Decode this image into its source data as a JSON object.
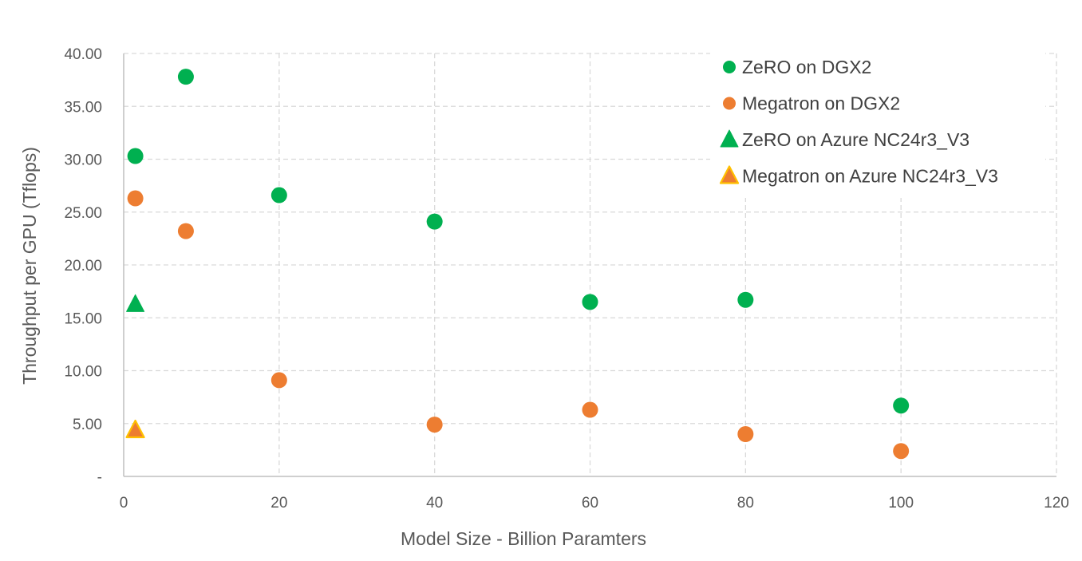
{
  "chart_data": {
    "type": "scatter",
    "title": "",
    "xlabel": "Model Size - Billion Paramters",
    "ylabel": "Throughput per GPU (Tflops)",
    "xlim": [
      0,
      120
    ],
    "ylim": [
      0,
      40
    ],
    "x_ticks": [
      "0",
      "20",
      "40",
      "60",
      "80",
      "100",
      "120"
    ],
    "y_ticks": [
      "-",
      "5.00",
      "10.00",
      "15.00",
      "20.00",
      "25.00",
      "30.00",
      "35.00",
      "40.00"
    ],
    "grid": true,
    "legend_position": "top-right",
    "series": [
      {
        "name": "ZeRO on DGX2",
        "marker": "circle",
        "color": "#00b050",
        "points": [
          [
            1.5,
            30.3
          ],
          [
            8,
            37.8
          ],
          [
            20,
            26.6
          ],
          [
            40,
            24.1
          ],
          [
            60,
            16.5
          ],
          [
            80,
            16.7
          ],
          [
            100,
            6.7
          ]
        ]
      },
      {
        "name": "Megatron on DGX2",
        "marker": "circle",
        "color": "#ed7d31",
        "points": [
          [
            1.5,
            26.3
          ],
          [
            8,
            23.2
          ],
          [
            20,
            9.1
          ],
          [
            40,
            4.9
          ],
          [
            60,
            6.3
          ],
          [
            80,
            4.0
          ],
          [
            100,
            2.4
          ]
        ]
      },
      {
        "name": "ZeRO on Azure NC24r3_V3",
        "marker": "triangle",
        "color": "#00b050",
        "points": [
          [
            1.5,
            16.2
          ]
        ]
      },
      {
        "name": "Megatron on Azure NC24r3_V3",
        "marker": "triangle",
        "color": "#ed7d31",
        "stroke": "#ffc000",
        "points": [
          [
            1.5,
            4.3
          ]
        ]
      }
    ]
  }
}
